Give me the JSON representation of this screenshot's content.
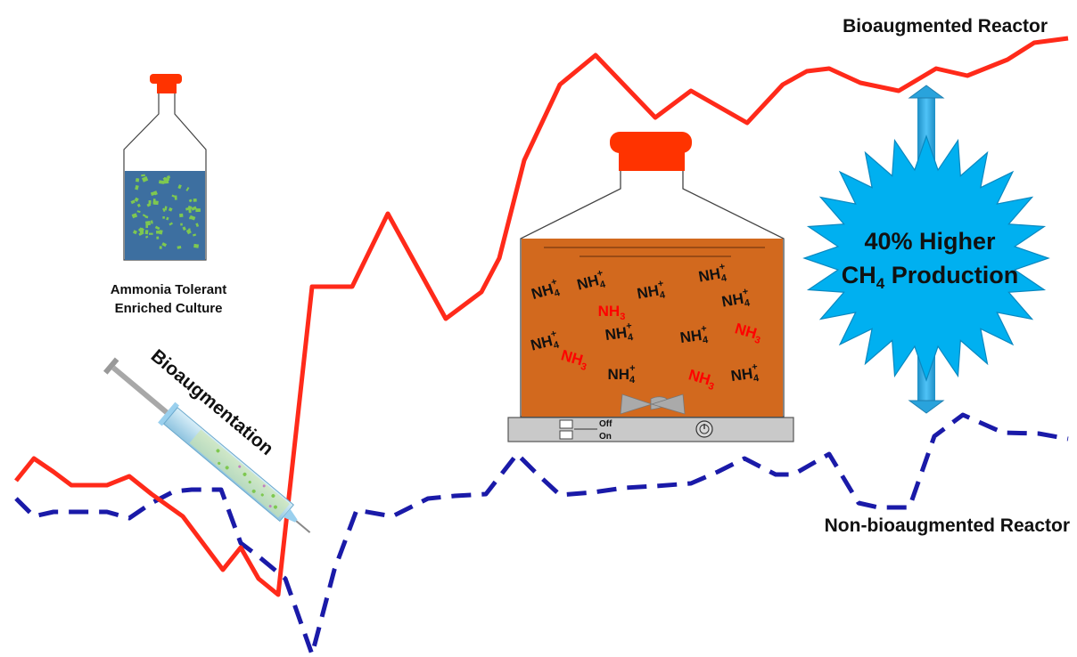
{
  "labels": {
    "bioaugmented_reactor": "Bioaugmented Reactor",
    "non_bioaugmented_reactor": "Non-bioaugmented Reactor",
    "culture_line1": "Ammonia Tolerant",
    "culture_line2": "Enriched Culture",
    "bioaugmentation": "Bioaugmentation",
    "burst_line1": "40% Higher",
    "burst_line2_prefix": "CH",
    "burst_line2_sub": "4",
    "burst_line2_suffix": " Production",
    "switch_off": "Off",
    "switch_on": "On"
  },
  "ions": {
    "ammonium_text": "NH",
    "ammonium_sub": "4",
    "ammonium_sup": "+",
    "ammonia_text": "NH",
    "ammonia_sub": "3"
  },
  "colors": {
    "bioaugmented_line": "#ff2a1a",
    "non_bioaugmented_line": "#1a1aa8",
    "reactor_liquid": "#d2691e",
    "culture_liquid": "#3d6fa0",
    "culture_particles": "#7ec850",
    "burst_fill": "#00b0f0",
    "cap": "#ff3300",
    "ammonia_text": "#ff0000"
  }
}
